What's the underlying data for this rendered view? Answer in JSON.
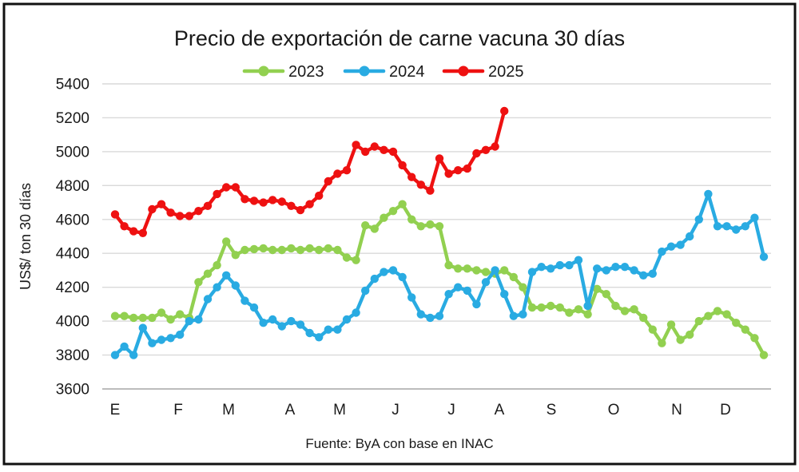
{
  "chart_data": {
    "type": "line",
    "title": "Precio de exportación de carne vacuna 30 días",
    "ylabel": "US$/ ton 30 días",
    "xlabel": "",
    "source": "Fuente: ByA con base en INAC",
    "grid": true,
    "legend_position": "top",
    "ylim": [
      3600,
      5400
    ],
    "y_ticks": [
      5400,
      5200,
      5000,
      4800,
      4600,
      4400,
      4200,
      4000,
      3800,
      3600
    ],
    "x_month_labels": [
      "E",
      "F",
      "M",
      "A",
      "M",
      "J",
      "J",
      "A",
      "S",
      "O",
      "N",
      "D"
    ],
    "series": [
      {
        "name": "2023",
        "color": "#92d050",
        "values": [
          4030,
          4030,
          4020,
          4020,
          4020,
          4050,
          4010,
          4040,
          4020,
          4230,
          4280,
          4330,
          4470,
          4390,
          4420,
          4425,
          4430,
          4420,
          4420,
          4430,
          4420,
          4430,
          4420,
          4430,
          4420,
          4375,
          4360,
          4565,
          4545,
          4610,
          4650,
          4690,
          4600,
          4560,
          4570,
          4560,
          4330,
          4310,
          4310,
          4300,
          4290,
          4280,
          4300,
          4260,
          4200,
          4080,
          4080,
          4090,
          4080,
          4050,
          4070,
          4040,
          4190,
          4160,
          4090,
          4060,
          4070,
          4020,
          3950,
          3870,
          3980,
          3890,
          3920,
          4000,
          4030,
          4060,
          4040,
          3990,
          3950,
          3900,
          3800
        ]
      },
      {
        "name": "2024",
        "color": "#29abe2",
        "values": [
          3800,
          3850,
          3800,
          3960,
          3870,
          3890,
          3900,
          3920,
          4000,
          4010,
          4130,
          4200,
          4270,
          4210,
          4120,
          4080,
          3990,
          4010,
          3970,
          4000,
          3980,
          3930,
          3905,
          3950,
          3950,
          4010,
          4050,
          4180,
          4250,
          4290,
          4300,
          4260,
          4140,
          4040,
          4020,
          4030,
          4160,
          4200,
          4180,
          4100,
          4230,
          4300,
          4160,
          4030,
          4040,
          4290,
          4320,
          4310,
          4330,
          4330,
          4360,
          4090,
          4310,
          4300,
          4320,
          4320,
          4300,
          4270,
          4280,
          4410,
          4440,
          4450,
          4500,
          4600,
          4750,
          4560,
          4560,
          4540,
          4560,
          4610,
          4380
        ]
      },
      {
        "name": "2025",
        "color": "#ee1111",
        "values": [
          4630,
          4560,
          4530,
          4520,
          4660,
          4690,
          4640,
          4620,
          4620,
          4650,
          4680,
          4750,
          4790,
          4790,
          4720,
          4710,
          4700,
          4715,
          4705,
          4680,
          4655,
          4690,
          4740,
          4825,
          4870,
          4890,
          5040,
          5000,
          5030,
          5010,
          5000,
          4920,
          4850,
          4805,
          4770,
          4960,
          4870,
          4890,
          4900,
          4990,
          5010,
          5030,
          5240
        ]
      }
    ]
  }
}
